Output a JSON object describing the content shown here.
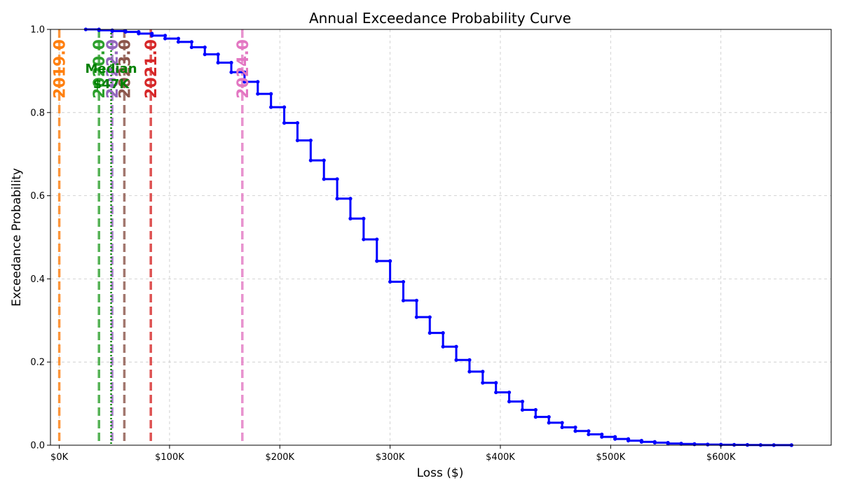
{
  "chart_data": {
    "type": "line",
    "title": "Annual Exceedance Probability Curve",
    "xlabel": "Loss ($)",
    "ylabel": "Exceedance Probability",
    "xlim": [
      -8000,
      700000
    ],
    "ylim": [
      0,
      1.0
    ],
    "x_ticks": [
      0,
      100000,
      200000,
      300000,
      400000,
      500000,
      600000
    ],
    "x_tick_labels": [
      "$0K",
      "$100K",
      "$200K",
      "$300K",
      "$400K",
      "$500K",
      "$600K"
    ],
    "y_ticks": [
      0.0,
      0.2,
      0.4,
      0.6,
      0.8,
      1.0
    ],
    "y_tick_labels": [
      "0.0",
      "0.2",
      "0.4",
      "0.6",
      "0.8",
      "1.0"
    ],
    "grid": true,
    "series": [
      {
        "color": "#0000ff",
        "style": "step",
        "x": [
          24000,
          36000,
          48000,
          60000,
          72000,
          84000,
          96000,
          108000,
          120000,
          132000,
          144000,
          156000,
          168000,
          180000,
          192000,
          204000,
          216000,
          228000,
          240000,
          252000,
          264000,
          276000,
          288000,
          300000,
          312000,
          324000,
          336000,
          348000,
          360000,
          372000,
          384000,
          396000,
          408000,
          420000,
          432000,
          444000,
          456000,
          468000,
          480000,
          492000,
          504000,
          516000,
          528000,
          540000,
          552000,
          564000,
          576000,
          588000,
          600000,
          612000,
          624000,
          636000,
          648000,
          664000
        ],
        "y": [
          1.0,
          0.998,
          0.996,
          0.994,
          0.99,
          0.985,
          0.978,
          0.97,
          0.957,
          0.94,
          0.92,
          0.897,
          0.874,
          0.845,
          0.813,
          0.775,
          0.733,
          0.685,
          0.64,
          0.593,
          0.545,
          0.495,
          0.443,
          0.393,
          0.348,
          0.308,
          0.27,
          0.237,
          0.205,
          0.177,
          0.15,
          0.127,
          0.105,
          0.085,
          0.068,
          0.054,
          0.043,
          0.034,
          0.026,
          0.02,
          0.015,
          0.011,
          0.008,
          0.006,
          0.004,
          0.003,
          0.002,
          0.0015,
          0.001,
          0.0008,
          0.0005,
          0.0003,
          0.0002,
          0.0
        ]
      }
    ],
    "vlines": [
      {
        "x": 0,
        "label": "2019.0",
        "color": "#ff7f0e"
      },
      {
        "x": 36000,
        "label": "2020.0",
        "color": "#2ca02c"
      },
      {
        "x": 48000,
        "label": "2022.0",
        "color": "#9467bd"
      },
      {
        "x": 59000,
        "label": "2023.0",
        "color": "#8c564b"
      },
      {
        "x": 83000,
        "label": "2021.0",
        "color": "#d62728"
      },
      {
        "x": 166000,
        "label": "2024.0",
        "color": "#e377c2"
      }
    ],
    "median": {
      "x": 47000,
      "label": "Median",
      "value_label": "$47K",
      "color": "#008000"
    }
  }
}
